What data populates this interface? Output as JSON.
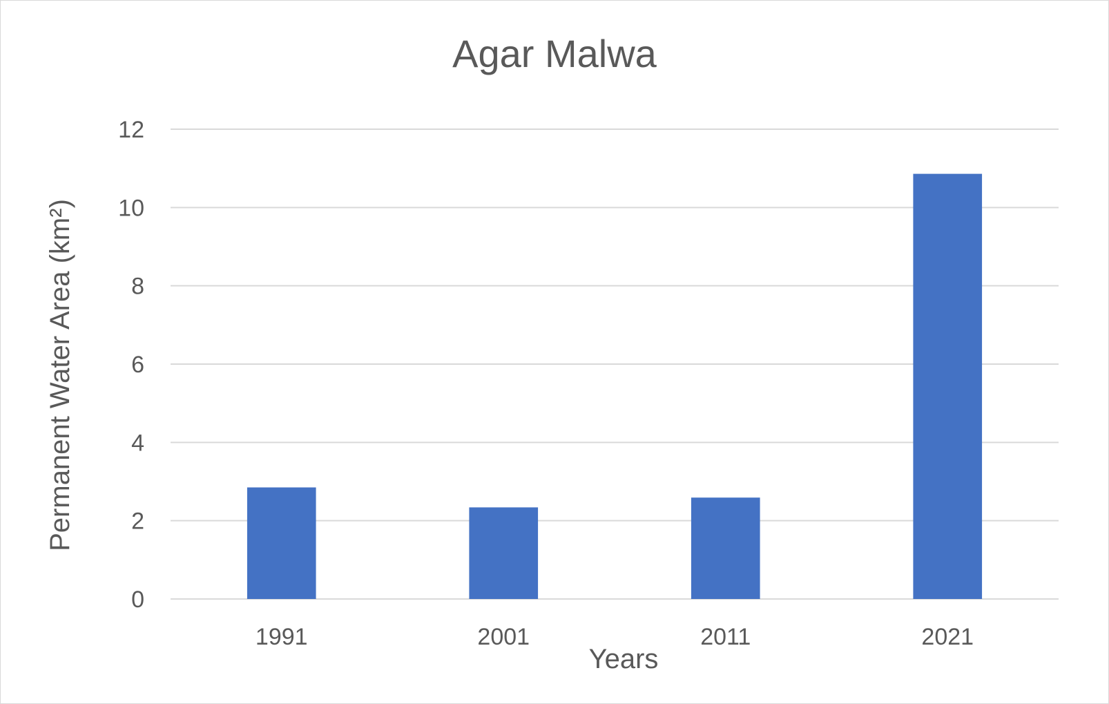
{
  "chart_data": {
    "type": "bar",
    "title": "Agar Malwa",
    "xlabel": "Years",
    "ylabel": "Permanent Water Area (km²)",
    "categories": [
      "1991",
      "2001",
      "2011",
      "2021"
    ],
    "values": [
      2.85,
      2.34,
      2.59,
      10.86
    ],
    "ylim": [
      0,
      12
    ],
    "yticks": [
      0,
      2,
      4,
      6,
      8,
      10,
      12
    ],
    "ytick_labels": [
      "0",
      "2",
      "4",
      "6",
      "8",
      "10",
      "12"
    ],
    "grid": true,
    "legend": "none",
    "bar_color": "#4472c4"
  }
}
